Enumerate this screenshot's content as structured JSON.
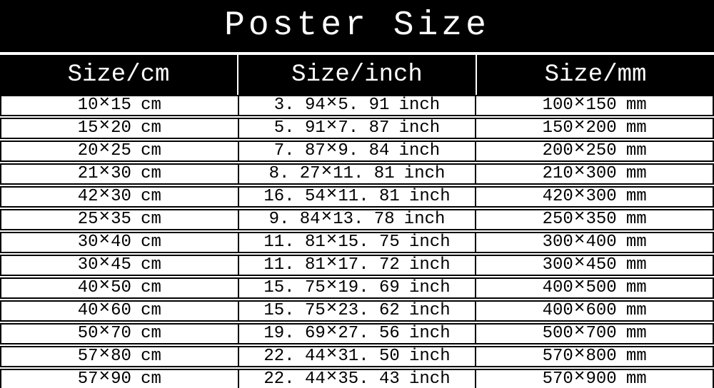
{
  "title": "Poster Size",
  "columns": [
    "Size/cm",
    "Size/inch",
    "Size/mm"
  ],
  "times": "×",
  "units": {
    "cm": "cm",
    "inch": "inch",
    "mm": "mm"
  },
  "rows": [
    {
      "cm": [
        "10",
        "15"
      ],
      "inch": [
        "3. 94",
        "5. 91"
      ],
      "mm": [
        "100",
        "150"
      ]
    },
    {
      "cm": [
        "15",
        "20"
      ],
      "inch": [
        "5. 91",
        "7. 87"
      ],
      "mm": [
        "150",
        "200"
      ]
    },
    {
      "cm": [
        "20",
        "25"
      ],
      "inch": [
        "7. 87",
        "9. 84"
      ],
      "mm": [
        "200",
        "250"
      ]
    },
    {
      "cm": [
        "21",
        "30"
      ],
      "inch": [
        "8. 27",
        "11. 81"
      ],
      "mm": [
        "210",
        "300"
      ]
    },
    {
      "cm": [
        "42",
        "30"
      ],
      "inch": [
        "16. 54",
        "11. 81"
      ],
      "mm": [
        "420",
        "300"
      ]
    },
    {
      "cm": [
        "25",
        "35"
      ],
      "inch": [
        "9. 84",
        "13. 78"
      ],
      "mm": [
        "250",
        "350"
      ]
    },
    {
      "cm": [
        "30",
        "40"
      ],
      "inch": [
        "11. 81",
        "15. 75"
      ],
      "mm": [
        "300",
        "400"
      ]
    },
    {
      "cm": [
        "30",
        "45"
      ],
      "inch": [
        "11. 81",
        "17. 72"
      ],
      "mm": [
        "300",
        "450"
      ]
    },
    {
      "cm": [
        "40",
        "50"
      ],
      "inch": [
        "15. 75",
        "19. 69"
      ],
      "mm": [
        "400",
        "500"
      ]
    },
    {
      "cm": [
        "40",
        "60"
      ],
      "inch": [
        "15. 75",
        "23. 62"
      ],
      "mm": [
        "400",
        "600"
      ]
    },
    {
      "cm": [
        "50",
        "70"
      ],
      "inch": [
        "19. 69",
        "27. 56"
      ],
      "mm": [
        "500",
        "700"
      ]
    },
    {
      "cm": [
        "57",
        "80"
      ],
      "inch": [
        "22. 44",
        "31. 50"
      ],
      "mm": [
        "570",
        "800"
      ]
    },
    {
      "cm": [
        "57",
        "90"
      ],
      "inch": [
        "22. 44",
        "35. 43"
      ],
      "mm": [
        "570",
        "900"
      ]
    }
  ],
  "colors": {
    "banner_bg": "#000000",
    "banner_text": "#ffffff",
    "header_bg": "#000000",
    "header_text": "#ffffff",
    "row_bg": "#ffffff",
    "row_text": "#000000",
    "border": "#000000"
  },
  "chart_data": {
    "type": "table",
    "title": "Poster Size",
    "columns": [
      "Size/cm",
      "Size/inch",
      "Size/mm"
    ],
    "rows": [
      [
        "10×15 cm",
        "3.94×5.91 inch",
        "100×150 mm"
      ],
      [
        "15×20 cm",
        "5.91×7.87 inch",
        "150×200 mm"
      ],
      [
        "20×25 cm",
        "7.87×9.84 inch",
        "200×250 mm"
      ],
      [
        "21×30 cm",
        "8.27×11.81 inch",
        "210×300 mm"
      ],
      [
        "42×30 cm",
        "16.54×11.81 inch",
        "420×300 mm"
      ],
      [
        "25×35 cm",
        "9.84×13.78 inch",
        "250×350 mm"
      ],
      [
        "30×40 cm",
        "11.81×15.75 inch",
        "300×400 mm"
      ],
      [
        "30×45 cm",
        "11.81×17.72 inch",
        "300×450 mm"
      ],
      [
        "40×50 cm",
        "15.75×19.69 inch",
        "400×500 mm"
      ],
      [
        "40×60 cm",
        "15.75×23.62 inch",
        "400×600 mm"
      ],
      [
        "50×70 cm",
        "19.69×27.56 inch",
        "500×700 mm"
      ],
      [
        "57×80 cm",
        "22.44×31.50 inch",
        "570×800 mm"
      ],
      [
        "57×90 cm",
        "22.44×35.43 inch",
        "570×900 mm"
      ]
    ]
  }
}
